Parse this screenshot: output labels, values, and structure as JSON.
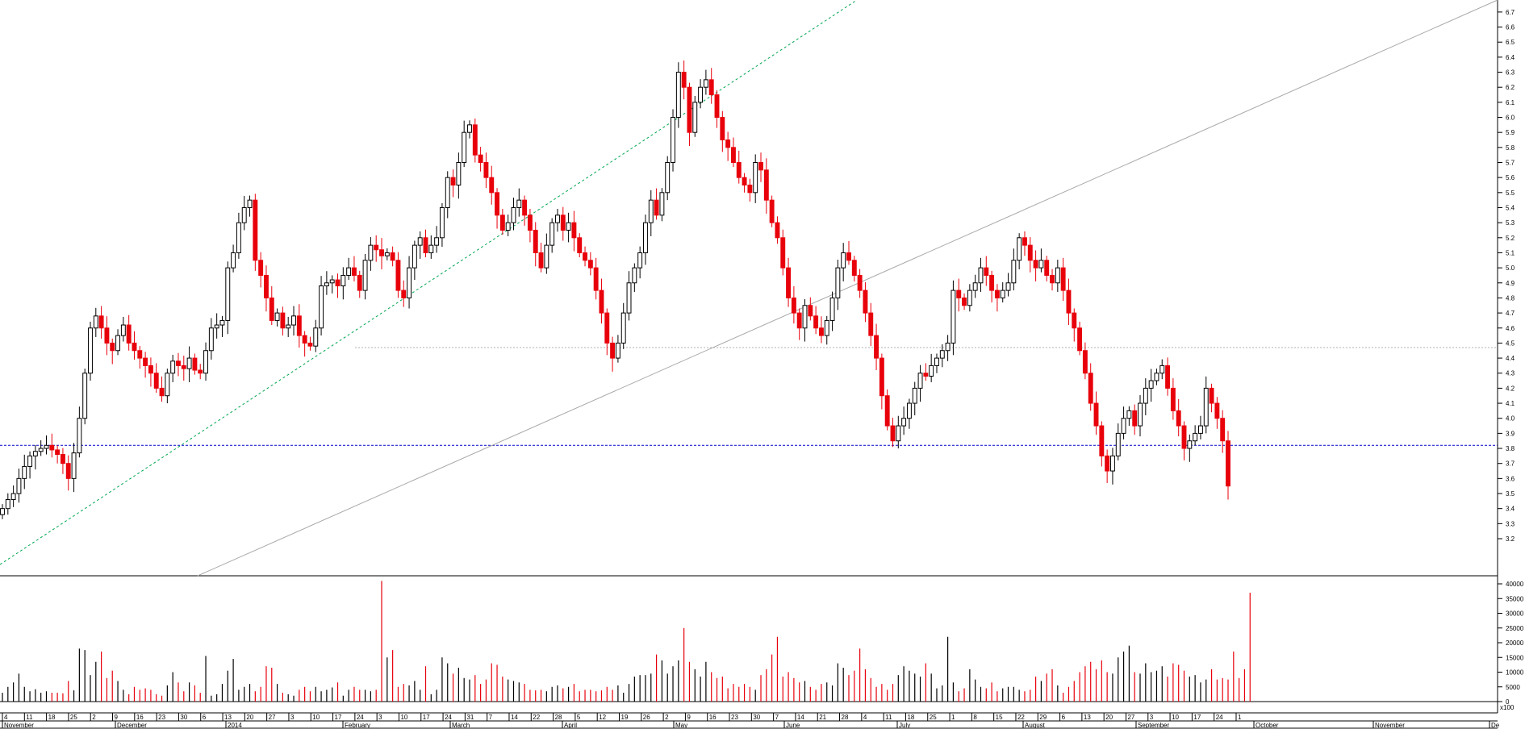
{
  "chart_data": {
    "type": "candlestick",
    "price_axis": {
      "ticks": [
        "3.2",
        "3.3",
        "3.4",
        "3.5",
        "3.6",
        "3.7",
        "3.8",
        "3.9",
        "4.0",
        "4.1",
        "4.2",
        "4.3",
        "4.4",
        "4.5",
        "4.6",
        "4.7",
        "4.8",
        "4.9",
        "5.0",
        "5.1",
        "5.2",
        "5.3",
        "5.4",
        "5.5",
        "5.6",
        "5.7",
        "5.8",
        "5.9",
        "6.0",
        "6.1",
        "6.2",
        "6.3",
        "6.4",
        "6.5",
        "6.6",
        "6.7"
      ],
      "range": [
        3.13,
        6.77
      ]
    },
    "volume_axis": {
      "ticks": [
        "0",
        "5000",
        "10000",
        "15000",
        "20000",
        "25000",
        "30000",
        "35000",
        "40000"
      ],
      "range": [
        0,
        42000
      ],
      "unit_label": "x100"
    },
    "months": [
      "November",
      "December",
      "2014",
      "February",
      "March",
      "April",
      "May",
      "June",
      "July",
      "August",
      "September",
      "October",
      "November",
      "De"
    ],
    "day_ticks": [
      "4",
      "11",
      "18",
      "25",
      "2",
      "9",
      "16",
      "23",
      "30",
      "6",
      "13",
      "20",
      "27",
      "3",
      "10",
      "17",
      "24",
      "3",
      "10",
      "17",
      "24",
      "31",
      "7",
      "14",
      "22",
      "28",
      "5",
      "12",
      "19",
      "26",
      "2",
      "9",
      "16",
      "23",
      "30",
      "7",
      "14",
      "21",
      "28",
      "4",
      "11",
      "18",
      "25",
      "1",
      "8",
      "15",
      "22",
      "29",
      "6",
      "13",
      "20",
      "27",
      "3",
      "10",
      "17",
      "24",
      "1"
    ],
    "reference_lines": {
      "support": 3.82,
      "resistance": 4.47
    },
    "closes": [
      3.4,
      3.46,
      3.5,
      3.6,
      3.68,
      3.75,
      3.78,
      3.8,
      3.82,
      3.79,
      3.76,
      3.7,
      3.6,
      3.77,
      4.0,
      4.3,
      4.6,
      4.68,
      4.6,
      4.5,
      4.45,
      4.55,
      4.62,
      4.5,
      4.45,
      4.4,
      4.35,
      4.3,
      4.2,
      4.15,
      4.3,
      4.38,
      4.35,
      4.33,
      4.4,
      4.32,
      4.3,
      4.45,
      4.6,
      4.62,
      4.65,
      5.0,
      5.1,
      5.3,
      5.4,
      5.45,
      5.05,
      4.95,
      4.8,
      4.65,
      4.7,
      4.6,
      4.62,
      4.68,
      4.55,
      4.5,
      4.48,
      4.6,
      4.88,
      4.9,
      4.92,
      4.88,
      4.95,
      5.0,
      4.95,
      4.85,
      5.05,
      5.15,
      5.12,
      5.08,
      5.1,
      5.05,
      4.85,
      4.8,
      5.0,
      5.15,
      5.2,
      5.1,
      5.15,
      5.2,
      5.4,
      5.6,
      5.55,
      5.7,
      5.9,
      5.95,
      5.75,
      5.7,
      5.6,
      5.5,
      5.35,
      5.25,
      5.3,
      5.4,
      5.45,
      5.35,
      5.25,
      5.1,
      5.0,
      5.15,
      5.3,
      5.35,
      5.25,
      5.3,
      5.2,
      5.1,
      5.05,
      5.0,
      4.85,
      4.7,
      4.5,
      4.4,
      4.5,
      4.7,
      4.9,
      5.0,
      5.1,
      5.3,
      5.45,
      5.35,
      5.5,
      5.7,
      6.0,
      6.3,
      6.2,
      5.9,
      6.1,
      6.2,
      6.25,
      6.15,
      6.0,
      5.85,
      5.8,
      5.7,
      5.6,
      5.55,
      5.5,
      5.7,
      5.65,
      5.45,
      5.3,
      5.2,
      5.0,
      4.8,
      4.7,
      4.6,
      4.75,
      4.68,
      4.6,
      4.55,
      4.65,
      4.8,
      5.0,
      5.1,
      5.05,
      4.95,
      4.85,
      4.7,
      4.55,
      4.4,
      4.15,
      3.95,
      3.85,
      3.95,
      4.0,
      4.1,
      4.2,
      4.3,
      4.28,
      4.35,
      4.4,
      4.45,
      4.5,
      4.85,
      4.8,
      4.75,
      4.85,
      4.9,
      5.0,
      4.95,
      4.85,
      4.8,
      4.85,
      4.9,
      5.05,
      5.2,
      5.15,
      5.05,
      5.0,
      5.05,
      4.95,
      4.9,
      5.0,
      4.85,
      4.7,
      4.6,
      4.45,
      4.3,
      4.1,
      3.95,
      3.75,
      3.65,
      3.75,
      3.9,
      4.0,
      4.05,
      3.95,
      4.1,
      4.2,
      4.25,
      4.3,
      4.35,
      4.2,
      4.05,
      3.95,
      3.8,
      3.85,
      3.9,
      3.95,
      4.2,
      4.1,
      4.0,
      3.85,
      3.55
    ],
    "volumes": [
      3000,
      5000,
      6500,
      9500,
      5000,
      3500,
      4200,
      3000,
      3500,
      3000,
      3000,
      2800,
      7000,
      3800,
      18000,
      17500,
      9000,
      13500,
      17000,
      8000,
      10500,
      7000,
      4000,
      2500,
      5000,
      4000,
      4500,
      4000,
      2500,
      2000,
      5500,
      10000,
      6500,
      3500,
      6500,
      5500,
      3000,
      15500,
      2000,
      2500,
      6000,
      10500,
      14500,
      4000,
      5000,
      6000,
      3500,
      5000,
      12000,
      11500,
      6000,
      3000,
      2500,
      2000,
      4000,
      5000,
      3500,
      5000,
      3500,
      4000,
      4800,
      6500,
      2000,
      4000,
      5000,
      4000,
      4000,
      3500,
      4000,
      41000,
      15000,
      17500,
      5000,
      6000,
      5500,
      7000,
      4000,
      12000,
      2500,
      4000,
      15000,
      13000,
      9500,
      11500,
      8000,
      7500,
      9000,
      6000,
      7500,
      13000,
      12500,
      8500,
      7500,
      7000,
      6500,
      6000,
      4000,
      3800,
      4000,
      3500,
      5000,
      5500,
      4500,
      5000,
      6000,
      3500,
      4000,
      4000,
      3500,
      3800,
      5000,
      4000,
      5500,
      3000,
      6000,
      8500,
      9000,
      9000,
      9500,
      16000,
      14000,
      9500,
      12000,
      14000,
      25000,
      13500,
      11000,
      8500,
      13500,
      10000,
      8000,
      8500,
      4500,
      6000,
      5000,
      6000,
      5000,
      4000,
      9000,
      11000,
      16000,
      22000,
      8500,
      10000,
      8000,
      6500,
      7000,
      5000,
      4000,
      6000,
      6500,
      5500,
      13000,
      11500,
      9000,
      10500,
      18000,
      11000,
      8000,
      5000,
      6000,
      4000,
      6000,
      9000,
      12000,
      10500,
      9500,
      8500,
      13000,
      9500,
      4500,
      5500,
      22000,
      6500,
      3500,
      4500,
      11000,
      7500,
      5000,
      4500,
      6500,
      3500,
      4500,
      5000,
      5000,
      4000,
      3500,
      4000,
      8500,
      7000,
      9500,
      11000,
      5500,
      3000,
      5000,
      7000,
      10000,
      12000,
      13500,
      11000,
      14000,
      10000,
      9500,
      15000,
      17000,
      19000,
      10000,
      9500,
      13000,
      10000,
      10500,
      12000,
      8500,
      13000,
      12500,
      10500,
      8500,
      9000,
      6500,
      7500,
      11000,
      7500,
      8000,
      7500,
      17000,
      8000,
      11000,
      37000
    ],
    "up_color": "#000000",
    "down_color": "#e8000b",
    "support_color": "#0000cc",
    "trend_color": "#00a651",
    "channel_color": "#a8a8a8"
  }
}
